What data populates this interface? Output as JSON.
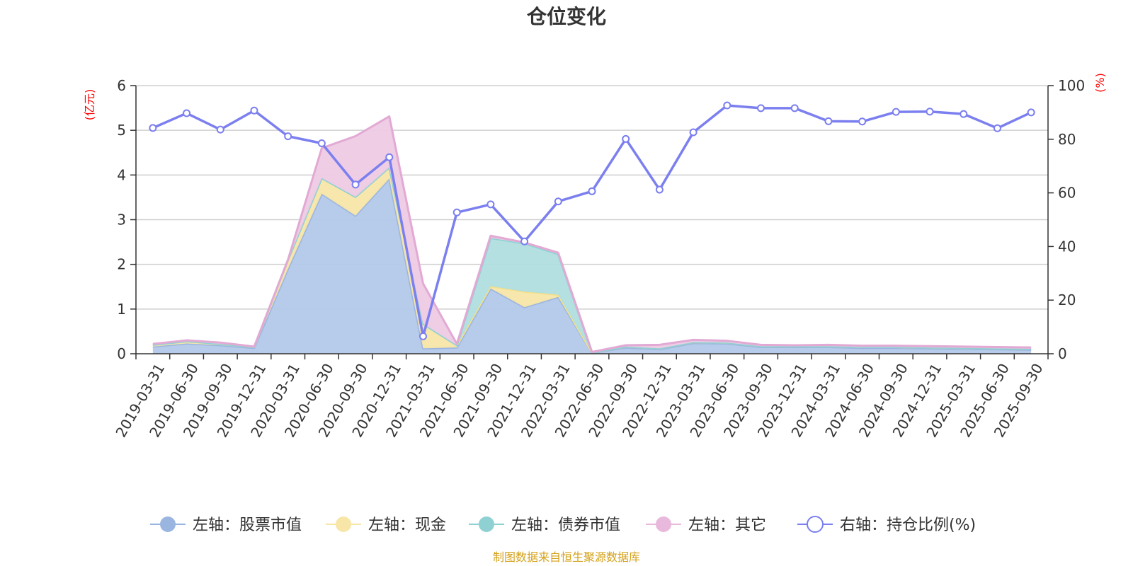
{
  "chart_data": {
    "type": "area",
    "title": "仓位变化",
    "left_axis_unit": "(亿元)",
    "right_axis_unit": "(%)",
    "ylim_left": [
      0,
      6
    ],
    "yticks_left": [
      "0",
      "1",
      "2",
      "3",
      "4",
      "5",
      "6"
    ],
    "ylim_right": [
      0,
      100
    ],
    "yticks_right": [
      "0",
      "20",
      "40",
      "60",
      "80",
      "100"
    ],
    "grid": true,
    "legend_position": "bottom",
    "categories": [
      "2019-03-31",
      "2019-06-30",
      "2019-09-30",
      "2019-12-31",
      "2020-03-31",
      "2020-06-30",
      "2020-09-30",
      "2020-12-31",
      "2021-03-31",
      "2021-06-30",
      "2021-09-30",
      "2021-12-31",
      "2022-03-31",
      "2022-06-30",
      "2022-09-30",
      "2022-12-31",
      "2023-03-31",
      "2023-06-30",
      "2023-09-30",
      "2023-12-31",
      "2024-03-31",
      "2024-06-30",
      "2024-09-30",
      "2024-12-31",
      "2025-03-31",
      "2025-06-30",
      "2025-09-30"
    ],
    "series": [
      {
        "name": "左轴：股票市值",
        "axis": "left",
        "stack": true,
        "color": "#9ab5e0",
        "fill": "#b3c8ea",
        "values": [
          0.16,
          0.23,
          0.19,
          0.13,
          1.9,
          3.58,
          3.09,
          3.92,
          0.12,
          0.14,
          1.46,
          1.04,
          1.27,
          0.02,
          0.14,
          0.1,
          0.24,
          0.23,
          0.15,
          0.15,
          0.15,
          0.13,
          0.13,
          0.12,
          0.11,
          0.1,
          0.09
        ]
      },
      {
        "name": "左轴：现金",
        "axis": "left",
        "stack": true,
        "color": "#f5e08a",
        "fill": "#f7e6a8",
        "values": [
          0.04,
          0.05,
          0.03,
          0.02,
          0.2,
          0.35,
          0.42,
          0.25,
          0.55,
          0.05,
          0.05,
          0.35,
          0.05,
          0.01,
          0.02,
          0.02,
          0.02,
          0.02,
          0.02,
          0.02,
          0.02,
          0.02,
          0.02,
          0.02,
          0.02,
          0.02,
          0.02
        ]
      },
      {
        "name": "左轴：债券市值",
        "axis": "left",
        "stack": true,
        "color": "#8fd1d3",
        "fill": "#b0dedf",
        "values": [
          0,
          0,
          0,
          0,
          0,
          0,
          0,
          0,
          0,
          0,
          1.08,
          1.08,
          0.91,
          0,
          0,
          0,
          0,
          0,
          0,
          0,
          0,
          0,
          0,
          0,
          0,
          0,
          0
        ]
      },
      {
        "name": "左轴：其它",
        "axis": "left",
        "stack": true,
        "color": "#e2a9d4",
        "fill": "#eecbe4",
        "values": [
          0.02,
          0.02,
          0.03,
          0.01,
          0.0,
          0.67,
          1.36,
          1.14,
          0.9,
          0.03,
          0.05,
          0.02,
          0.03,
          0.01,
          0.03,
          0.08,
          0.05,
          0.04,
          0.03,
          0.02,
          0.03,
          0.03,
          0.03,
          0.03,
          0.03,
          0.03,
          0.03
        ]
      },
      {
        "name": "右轴：持仓比例(%)",
        "axis": "right",
        "type": "line",
        "color": "#7b7fef",
        "values": [
          84.2,
          89.7,
          83.6,
          90.7,
          81.1,
          78.5,
          63.1,
          73.3,
          6.5,
          52.7,
          55.7,
          41.9,
          56.8,
          60.6,
          80.1,
          61.2,
          82.6,
          92.6,
          91.6,
          91.6,
          86.7,
          86.6,
          90.2,
          90.3,
          89.4,
          84.1,
          90.0
        ]
      }
    ]
  },
  "legend": [
    {
      "label": "左轴：股票市值",
      "icon": "circle-filled",
      "color": "#9ab5e0"
    },
    {
      "label": "左轴：现金",
      "icon": "circle-filled",
      "color": "#f7e6a8"
    },
    {
      "label": "左轴：债券市值",
      "icon": "circle-filled",
      "color": "#8fd1d3"
    },
    {
      "label": "左轴：其它",
      "icon": "circle-filled",
      "color": "#e8b9dc"
    },
    {
      "label": "右轴：持仓比例(%)",
      "icon": "circle-hollow",
      "color": "#7b7fef"
    }
  ],
  "source_note": "制图数据来自恒生聚源数据库"
}
